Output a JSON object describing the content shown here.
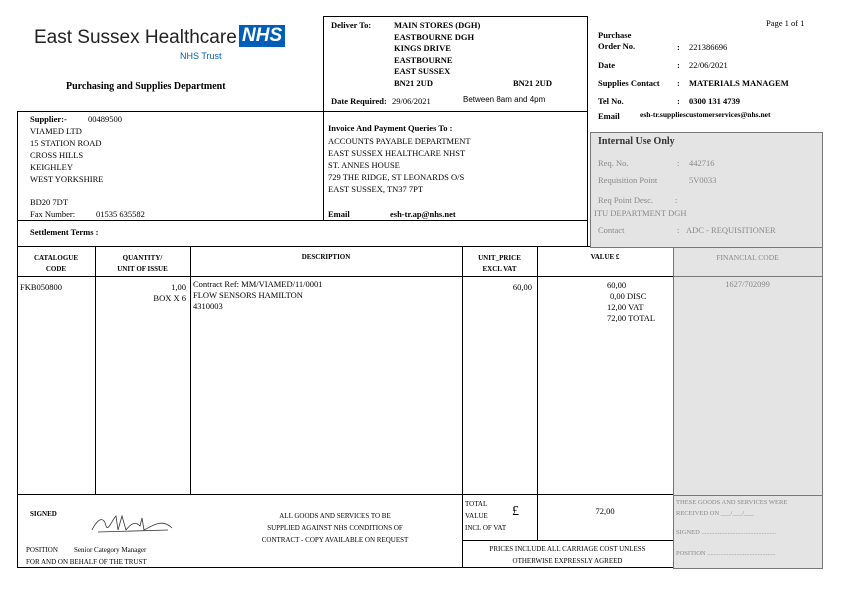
{
  "header": {
    "org_name": "East Sussex Healthcare",
    "logo": "NHS",
    "trust": "NHS Trust",
    "department": "Purchasing and Supplies Department",
    "page": "Page 1 of 1"
  },
  "delivery": {
    "label": "Deliver To:",
    "lines": [
      "MAIN STORES (DGH)",
      "EASTBOURNE DGH",
      "KINGS DRIVE",
      "EASTBOURNE",
      "EAST SUSSEX",
      "BN21 2UD"
    ],
    "postcode_right": "BN21 2UD",
    "date_label": "Date Required:",
    "date": "29/06/2021",
    "time": "Between 8am and 4pm"
  },
  "order": {
    "po_label1": "Purchase",
    "po_label2": "Order No.",
    "po": "221386696",
    "date_label": "Date",
    "date": "22/06/2021",
    "contact_label": "Supplies Contact",
    "contact": "MATERIALS MANAGEM",
    "tel_label": "Tel No.",
    "tel": "0300 131 4739",
    "email_label": "Email",
    "email": "esh-tr.suppliescustomerservices@nhs.net",
    "colon": ":"
  },
  "supplier": {
    "label": "Supplier:-",
    "code": "00489500",
    "lines": [
      "VIAMED LTD",
      "15 STATION ROAD",
      "CROSS HILLS",
      "KEIGHLEY",
      "WEST YORKSHIRE"
    ],
    "postcode": "BD20 7DT",
    "fax_label": "Fax Number:",
    "fax": "01535 635582",
    "settlement_label": "Settlement Terms :"
  },
  "invoice": {
    "label": "Invoice And Payment Queries To :",
    "lines": [
      "ACCOUNTS PAYABLE DEPARTMENT",
      "EAST SUSSEX HEALTHCARE NHST",
      "ST. ANNES HOUSE",
      "729 THE RIDGE, ST LEONARDS O/S",
      "EAST SUSSEX, TN37 7PT"
    ],
    "email_label": "Email",
    "email": "esh-tr.ap@nhs.net"
  },
  "internal": {
    "title": "Internal Use Only",
    "req_label": "Req. No.",
    "req": "442716",
    "point_label": "Requisition Point",
    "point": "5V0033",
    "desc_label": "Req Point Desc.",
    "desc": "ITU DEPARTMENT DGH",
    "contact_label": "Contact",
    "contact": "ADC - REQUISITIONER"
  },
  "table": {
    "headers": [
      [
        "CATALOGUE",
        "CODE"
      ],
      [
        "QUANTITY/",
        "UNIT OF ISSUE"
      ],
      [
        "DESCRIPTION",
        ""
      ],
      [
        "UNIT_PRICE",
        "EXCL VAT"
      ],
      [
        "VALUE £",
        ""
      ],
      [
        "FINANCIAL CODE",
        ""
      ]
    ],
    "row": {
      "code": "FKB050800",
      "qty": "1,00",
      "unit": "BOX X 6",
      "desc": [
        "Contract Ref: MM/VIAMED/11/0001",
        "FLOW SENSORS HAMILTON",
        "4310003"
      ],
      "price": "60,00",
      "value": "60,00",
      "disc": "0,00 DISC",
      "vat": "12,00 VAT",
      "total": "72,00 TOTAL",
      "fin_code": "1627/702099"
    }
  },
  "footer": {
    "signed": "SIGNED",
    "position_label": "POSITION",
    "position": "Senior Category Manager",
    "behalf": "FOR AND ON BEHALF OF THE TRUST",
    "conditions": [
      "ALL GOODS AND SERVICES TO BE",
      "SUPPLIED AGAINST NHS CONDITIONS OF",
      "CONTRACT - COPY AVAILABLE ON REQUEST"
    ],
    "total_lines": [
      "TOTAL",
      "VALUE",
      "INCL OF VAT"
    ],
    "currency": "£",
    "total": "72,00",
    "carriage": [
      "PRICES INCLUDE ALL CARRIAGE COST UNLESS",
      "OTHERWISE EXPRESSLY AGREED"
    ],
    "received": "THESE GOODS AND SERVICES WERE",
    "received_on": "RECEIVED ON ___/___/___",
    "signed_line": "SIGNED ..............................................",
    "position_line": "POSITION .........................................."
  },
  "colors": {
    "nhs_blue": "#005eb8",
    "gray_panel": "#e4e4e4"
  }
}
